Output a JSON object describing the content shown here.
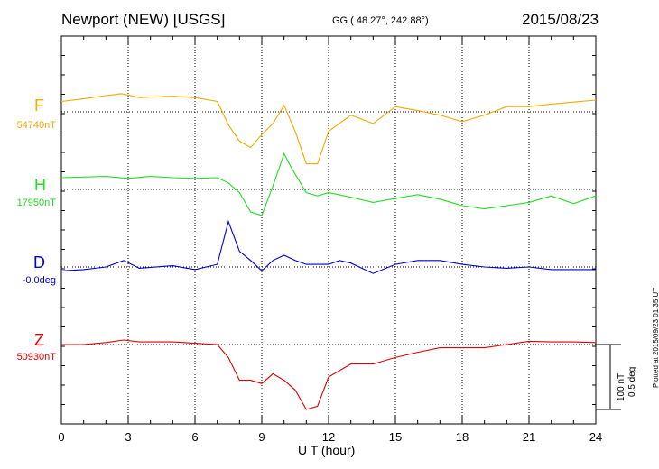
{
  "header": {
    "title": "Newport (NEW)  [USGS]",
    "coords": "GG ( 48.27°, 242.88°)",
    "date": "2015/08/23"
  },
  "side": {
    "plotted": "Plotted at 2015/09/23 01:35 UT",
    "scale_nt": "100 nT",
    "scale_deg": "0.5 deg"
  },
  "chart_data": {
    "type": "line",
    "title": "Newport (NEW)  [USGS]",
    "xlabel": "U T (hour)",
    "ylabel": "",
    "xlim": [
      0,
      24
    ],
    "xticks": [
      "0",
      "3",
      "6",
      "9",
      "12",
      "15",
      "18",
      "21",
      "24"
    ],
    "grid": true,
    "scale_bar": {
      "nT": 100,
      "deg": 0.5
    },
    "series": [
      {
        "name": "F",
        "baseline_label": "54740nT",
        "color": "#f2a900",
        "units": "nT offset from baseline",
        "points": [
          [
            0,
            16
          ],
          [
            1,
            20
          ],
          [
            2,
            25
          ],
          [
            2.7,
            28
          ],
          [
            3.5,
            22
          ],
          [
            5,
            24
          ],
          [
            6,
            22
          ],
          [
            7,
            16
          ],
          [
            7.5,
            -20
          ],
          [
            8,
            -45
          ],
          [
            8.5,
            -55
          ],
          [
            9,
            -35
          ],
          [
            9.5,
            -18
          ],
          [
            10,
            10
          ],
          [
            10.5,
            -30
          ],
          [
            11,
            -80
          ],
          [
            11.5,
            -80
          ],
          [
            12,
            -30
          ],
          [
            13,
            -5
          ],
          [
            14,
            -18
          ],
          [
            15,
            8
          ],
          [
            16,
            2
          ],
          [
            17,
            -5
          ],
          [
            18,
            -15
          ],
          [
            19,
            -5
          ],
          [
            20,
            8
          ],
          [
            21,
            8
          ],
          [
            22,
            12
          ],
          [
            23,
            15
          ],
          [
            24,
            18
          ]
        ]
      },
      {
        "name": "H",
        "baseline_label": "17950nT",
        "color": "#22dd22",
        "units": "nT offset from baseline",
        "points": [
          [
            0,
            18
          ],
          [
            2,
            20
          ],
          [
            3,
            17
          ],
          [
            4,
            20
          ],
          [
            5,
            18
          ],
          [
            6,
            17
          ],
          [
            7,
            18
          ],
          [
            7.5,
            10
          ],
          [
            8,
            -5
          ],
          [
            8.5,
            -35
          ],
          [
            9,
            -40
          ],
          [
            9.5,
            5
          ],
          [
            10,
            55
          ],
          [
            10.3,
            35
          ],
          [
            11,
            -5
          ],
          [
            11.5,
            -10
          ],
          [
            12,
            -5
          ],
          [
            13,
            -12
          ],
          [
            14,
            -20
          ],
          [
            15,
            -14
          ],
          [
            16,
            -8
          ],
          [
            17,
            -15
          ],
          [
            18,
            -25
          ],
          [
            19,
            -30
          ],
          [
            20,
            -25
          ],
          [
            21,
            -20
          ],
          [
            22,
            -10
          ],
          [
            23,
            -22
          ],
          [
            24,
            -10
          ]
        ]
      },
      {
        "name": "D",
        "baseline_label": "-0.0deg",
        "color": "#0000cc",
        "units": "deg offset from baseline",
        "points": [
          [
            0,
            -0.03
          ],
          [
            1,
            -0.02
          ],
          [
            2,
            0
          ],
          [
            2.8,
            0.05
          ],
          [
            3.5,
            -0.01
          ],
          [
            5,
            0.01
          ],
          [
            6,
            -0.02
          ],
          [
            7,
            0.02
          ],
          [
            7.5,
            0.35
          ],
          [
            8,
            0.12
          ],
          [
            8.5,
            0.05
          ],
          [
            9,
            -0.03
          ],
          [
            9.5,
            0.05
          ],
          [
            10,
            0.09
          ],
          [
            10.5,
            0.05
          ],
          [
            11,
            0.02
          ],
          [
            12,
            0.02
          ],
          [
            12.5,
            0.05
          ],
          [
            13,
            0.03
          ],
          [
            14,
            -0.05
          ],
          [
            15,
            0.02
          ],
          [
            16,
            0.05
          ],
          [
            17,
            0.05
          ],
          [
            18,
            0.02
          ],
          [
            19,
            0
          ],
          [
            20,
            -0.01
          ],
          [
            21,
            0
          ],
          [
            22,
            -0.02
          ],
          [
            23,
            -0.02
          ],
          [
            24,
            -0.02
          ]
        ]
      },
      {
        "name": "Z",
        "baseline_label": "50930nT",
        "color": "#dd0000",
        "units": "nT offset from baseline",
        "points": [
          [
            0,
            0
          ],
          [
            1,
            0
          ],
          [
            2,
            3
          ],
          [
            2.8,
            7
          ],
          [
            3.5,
            4
          ],
          [
            5,
            4
          ],
          [
            6,
            2
          ],
          [
            7,
            0
          ],
          [
            7.5,
            -20
          ],
          [
            8,
            -55
          ],
          [
            8.5,
            -55
          ],
          [
            9,
            -60
          ],
          [
            9.5,
            -45
          ],
          [
            10,
            -55
          ],
          [
            10.5,
            -70
          ],
          [
            11,
            -100
          ],
          [
            11.5,
            -95
          ],
          [
            12,
            -50
          ],
          [
            13,
            -30
          ],
          [
            14,
            -30
          ],
          [
            15,
            -20
          ],
          [
            16,
            -12
          ],
          [
            17,
            -5
          ],
          [
            18,
            -5
          ],
          [
            19,
            -5
          ],
          [
            20,
            0
          ],
          [
            21,
            5
          ],
          [
            22,
            4
          ],
          [
            23,
            4
          ],
          [
            24,
            3
          ]
        ]
      }
    ]
  }
}
